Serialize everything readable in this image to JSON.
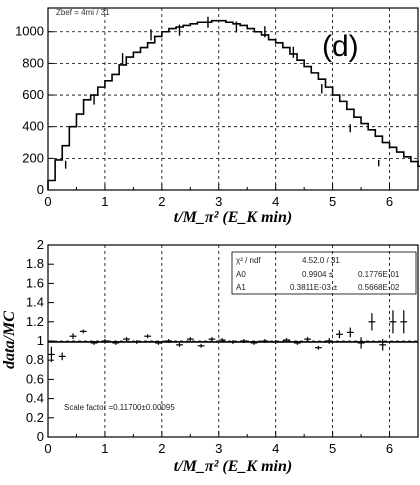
{
  "chart_data": [
    {
      "type": "line",
      "panel_label": "(d)",
      "corner_text": "Zbef = 4mi / 31",
      "xlabel": "t/M_π² (E_K min)",
      "xlim": [
        0,
        6.5
      ],
      "ylim": [
        0,
        1150
      ],
      "x_ticks": [
        0,
        1,
        2,
        3,
        4,
        5,
        6
      ],
      "y_ticks": [
        0,
        200,
        400,
        600,
        800,
        1000
      ],
      "grid": true,
      "series": [
        {
          "kind": "histogram",
          "bin_width": 0.125,
          "x_start": 0,
          "values": [
            60,
            190,
            280,
            400,
            480,
            570,
            600,
            650,
            690,
            730,
            790,
            840,
            870,
            900,
            930,
            970,
            1000,
            1020,
            1030,
            1040,
            1050,
            1060,
            1060,
            1070,
            1070,
            1060,
            1050,
            1040,
            1020,
            1000,
            980,
            950,
            930,
            900,
            860,
            820,
            780,
            740,
            700,
            650,
            600,
            560,
            510,
            460,
            420,
            380,
            340,
            300,
            270,
            240,
            210,
            180,
            150,
            120,
            100,
            80,
            60,
            45
          ]
        },
        {
          "kind": "points",
          "x": [
            0.31,
            0.81,
            1.31,
            1.81,
            2.31,
            2.81,
            3.31,
            3.81,
            4.31,
            4.81,
            5.31,
            5.81
          ],
          "y": [
            160,
            570,
            830,
            980,
            1010,
            1060,
            1030,
            1000,
            870,
            640,
            390,
            170
          ],
          "err": [
            25,
            30,
            35,
            35,
            35,
            35,
            35,
            35,
            35,
            30,
            25,
            20
          ]
        }
      ]
    },
    {
      "type": "scatter",
      "xlabel": "t/M_π² (E_K min)",
      "ylabel": "data/MC",
      "xlim": [
        0,
        6.5
      ],
      "ylim": [
        0,
        2
      ],
      "x_ticks": [
        0,
        1,
        2,
        3,
        4,
        5,
        6
      ],
      "y_ticks": [
        0,
        0.2,
        0.4,
        0.6,
        0.8,
        1,
        1.2,
        1.4,
        1.6,
        1.8,
        2
      ],
      "y_tick_labels": [
        "0",
        "0.2",
        "0.4",
        "0.6",
        "0.8",
        "1",
        "1.2",
        "1.4",
        "1.6",
        "1.8",
        "2"
      ],
      "grid": true,
      "fit_line": {
        "y": 0.99
      },
      "stats_box": {
        "rows": [
          [
            "χ² / ndf",
            "4.52.0 / 31"
          ],
          [
            "A0",
            "0.9904 ±",
            "0.1776E-01"
          ],
          [
            "A1",
            "0.3811E-03 ±",
            "0.5668E-02"
          ]
        ]
      },
      "scale_factor_text": "Scale factor =0.11700±0.00095",
      "points": {
        "x": [
          0.06,
          0.25,
          0.44,
          0.62,
          0.81,
          1.0,
          1.19,
          1.38,
          1.56,
          1.75,
          1.94,
          2.12,
          2.31,
          2.5,
          2.69,
          2.88,
          3.06,
          3.25,
          3.44,
          3.62,
          3.81,
          4.0,
          4.19,
          4.38,
          4.56,
          4.75,
          4.94,
          5.12,
          5.31,
          5.5,
          5.69,
          5.88,
          6.06,
          6.25
        ],
        "y": [
          0.86,
          0.84,
          1.05,
          1.1,
          0.98,
          1.0,
          0.98,
          1.02,
          0.99,
          1.05,
          0.98,
          1.0,
          0.96,
          1.02,
          0.95,
          1.02,
          1.01,
          0.99,
          1.0,
          0.98,
          1.0,
          0.99,
          1.01,
          0.98,
          1.02,
          0.93,
          1.0,
          1.07,
          1.09,
          0.98,
          1.2,
          0.96,
          1.2,
          1.2
        ],
        "err": [
          0.08,
          0.04,
          0.03,
          0.02,
          0.02,
          0.02,
          0.02,
          0.02,
          0.02,
          0.02,
          0.02,
          0.02,
          0.02,
          0.02,
          0.02,
          0.02,
          0.02,
          0.02,
          0.02,
          0.02,
          0.02,
          0.02,
          0.02,
          0.02,
          0.02,
          0.02,
          0.03,
          0.04,
          0.05,
          0.06,
          0.09,
          0.06,
          0.12,
          0.12
        ]
      }
    }
  ]
}
